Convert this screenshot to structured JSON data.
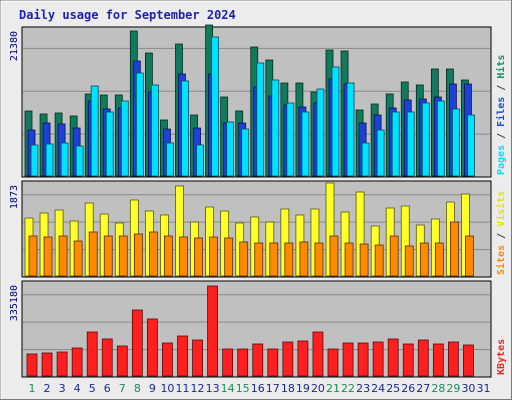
{
  "chart_data": [
    {
      "type": "bar",
      "title": "Daily usage for September 2024",
      "panel": "hits-files-pages",
      "ymax_label": "21380",
      "ylim": [
        0,
        21380
      ],
      "grid": true,
      "categories": [
        "1",
        "2",
        "3",
        "4",
        "5",
        "6",
        "7",
        "8",
        "9",
        "10",
        "11",
        "12",
        "13",
        "14",
        "15",
        "16",
        "17",
        "18",
        "19",
        "20",
        "21",
        "22",
        "23",
        "24",
        "25",
        "26",
        "27",
        "28",
        "29",
        "30",
        "31"
      ],
      "axis_label_parts": [
        {
          "text": "Pages",
          "color": "#00e0ff"
        },
        {
          "text": " / ",
          "color": "#444444"
        },
        {
          "text": "Files",
          "color": "#1b4fdc"
        },
        {
          "text": " / ",
          "color": "#444444"
        },
        {
          "text": "Hits",
          "color": "#1f8a74"
        }
      ],
      "series": [
        {
          "name": "Hits",
          "color": "#117a5d",
          "values": [
            9400,
            9000,
            9100,
            8700,
            11900,
            11700,
            11700,
            21000,
            17800,
            8100,
            19000,
            8800,
            21800,
            11400,
            9400,
            18700,
            16700,
            13500,
            13400,
            12100,
            18200,
            18100,
            9500,
            10400,
            11800,
            13600,
            13200,
            15500,
            15500,
            13800,
            0
          ]
        },
        {
          "name": "Files",
          "color": "#1e40d8",
          "values": [
            6600,
            7700,
            7500,
            6900,
            10800,
            9700,
            9800,
            16600,
            12200,
            6800,
            14700,
            7000,
            14800,
            7600,
            7700,
            12800,
            11600,
            10300,
            10000,
            10500,
            14000,
            13300,
            7600,
            8800,
            9800,
            11000,
            11100,
            11400,
            13300,
            13300,
            0
          ]
        },
        {
          "name": "Pages",
          "color": "#00e0ff",
          "values": [
            4500,
            4600,
            4800,
            4400,
            13000,
            9200,
            10900,
            14900,
            13100,
            4700,
            13700,
            4500,
            20100,
            7800,
            6800,
            16300,
            13900,
            10500,
            9200,
            12600,
            15700,
            13500,
            4700,
            6700,
            9300,
            9200,
            10600,
            10900,
            9700,
            8800,
            0
          ]
        }
      ]
    },
    {
      "type": "bar",
      "panel": "visits-sites",
      "ymax_label": "1873",
      "ylim": [
        0,
        1873
      ],
      "grid": true,
      "categories": [
        "1",
        "2",
        "3",
        "4",
        "5",
        "6",
        "7",
        "8",
        "9",
        "10",
        "11",
        "12",
        "13",
        "14",
        "15",
        "16",
        "17",
        "18",
        "19",
        "20",
        "21",
        "22",
        "23",
        "24",
        "25",
        "26",
        "27",
        "28",
        "29",
        "30",
        "31"
      ],
      "axis_label_parts": [
        {
          "text": "Sites",
          "color": "#ff8a00"
        },
        {
          "text": " / ",
          "color": "#444444"
        },
        {
          "text": "Visits",
          "color": "#e6e600"
        }
      ],
      "series": [
        {
          "name": "Visits",
          "color": "#ffff2a",
          "values": [
            1150,
            1260,
            1310,
            1090,
            1450,
            1240,
            1050,
            1520,
            1290,
            1220,
            1790,
            1070,
            1380,
            1300,
            1050,
            1170,
            1070,
            1330,
            1210,
            1330,
            1860,
            1270,
            1670,
            1000,
            1360,
            1400,
            1020,
            1140,
            1480,
            1640,
            0
          ]
        },
        {
          "name": "Sites",
          "color": "#ff8a00",
          "values": [
            790,
            780,
            790,
            700,
            870,
            790,
            790,
            830,
            870,
            790,
            770,
            750,
            780,
            760,
            680,
            650,
            650,
            660,
            670,
            650,
            790,
            660,
            630,
            610,
            800,
            600,
            650,
            650,
            1080,
            800,
            0
          ]
        }
      ]
    },
    {
      "type": "bar",
      "panel": "kbytes",
      "ymax_label": "335180",
      "ylim": [
        0,
        335180
      ],
      "grid": true,
      "categories": [
        "1",
        "2",
        "3",
        "4",
        "5",
        "6",
        "7",
        "8",
        "9",
        "10",
        "11",
        "12",
        "13",
        "14",
        "15",
        "16",
        "17",
        "18",
        "19",
        "20",
        "21",
        "22",
        "23",
        "24",
        "25",
        "26",
        "27",
        "28",
        "29",
        "30",
        "31"
      ],
      "axis_label_parts": [
        {
          "text": "KBytes",
          "color": "#ff2020"
        }
      ],
      "series": [
        {
          "name": "KBytes",
          "color": "#ff1f1f",
          "values": [
            79000,
            83000,
            86000,
            99000,
            158000,
            132000,
            107000,
            234000,
            203000,
            118000,
            144000,
            130000,
            320000,
            95000,
            95000,
            114000,
            95000,
            122000,
            125000,
            156000,
            98000,
            116000,
            119000,
            120000,
            132000,
            115000,
            127000,
            113000,
            122000,
            112000,
            0
          ]
        }
      ]
    }
  ],
  "x_axis": {
    "day_colors": {
      "weekday": "#1b2a8c",
      "weekend": "#1f8a5a"
    },
    "weekend_days": [
      "1",
      "7",
      "8",
      "14",
      "15",
      "21",
      "22",
      "28",
      "29"
    ]
  }
}
